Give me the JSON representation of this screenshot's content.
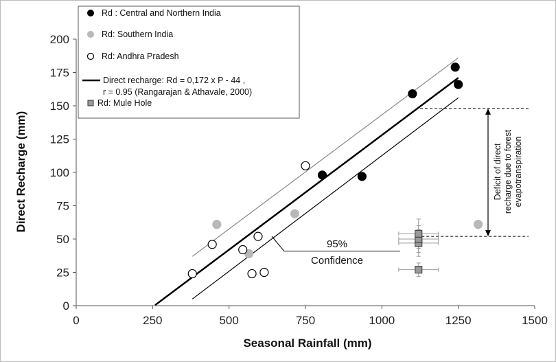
{
  "chart_data": {
    "type": "scatter",
    "xlabel": "Seasonal Rainfall (mm)",
    "ylabel": "Direct Recharge (mm)",
    "xlim": [
      0,
      1500
    ],
    "ylim": [
      0,
      200
    ],
    "x_ticks": [
      "0",
      "250",
      "500",
      "750",
      "1000",
      "1250",
      "1500"
    ],
    "y_ticks": [
      "0",
      "25",
      "50",
      "75",
      "100",
      "125",
      "150",
      "175",
      "200"
    ],
    "grid": false,
    "legend_position": "top-left",
    "legend": {
      "central": "Rd : Central and Northern India",
      "southern": "Rd: Southern India",
      "andhra": "Rd: Andhra Pradesh",
      "line_1": "Direct recharge: Rd = 0,172 x P - 44 ,",
      "line_2": "r = 0.95 (Rangarajan & Athavale, 2000)",
      "mule": "Rd: Mule Hole"
    },
    "series": [
      {
        "name": "Rd : Central and Northern India",
        "color": "#000000",
        "points": [
          [
            805,
            98
          ],
          [
            935,
            97
          ],
          [
            1100,
            159
          ],
          [
            1240,
            179
          ],
          [
            1250,
            166
          ]
        ]
      },
      {
        "name": "Rd: Southern India",
        "color": "#b8b8b8",
        "points": [
          [
            460,
            61
          ],
          [
            565,
            39
          ],
          [
            715,
            69
          ],
          [
            1315,
            61
          ]
        ]
      },
      {
        "name": "Rd: Andhra Pradesh",
        "color": "#ffffff",
        "points": [
          [
            380,
            24
          ],
          [
            445,
            46
          ],
          [
            545,
            42
          ],
          [
            575,
            24
          ],
          [
            595,
            52
          ],
          [
            615,
            25
          ],
          [
            750,
            105
          ]
        ]
      },
      {
        "name": "Rd: Mule Hole",
        "color": "#999999",
        "points": [
          [
            1120,
            27
          ],
          [
            1120,
            47
          ],
          [
            1120,
            50
          ],
          [
            1120,
            54
          ]
        ],
        "x_error": 65,
        "y_error": [
          5,
          10,
          10,
          11
        ]
      }
    ],
    "regression": {
      "slope": 0.172,
      "intercept": -44,
      "x_range": [
        258,
        1250
      ]
    },
    "confidence_upper": {
      "start": [
        380,
        37
      ],
      "end": [
        1250,
        186
      ]
    },
    "confidence_lower": {
      "start": [
        380,
        5
      ],
      "end": [
        1250,
        156
      ]
    },
    "annotation": {
      "confidence_line_1": "95%",
      "confidence_line_2": "Confidence",
      "deficit_line_1": "Deficit of direct",
      "deficit_line_2": "recharge due to forest",
      "deficit_line_3": "evapotranspiration",
      "deficit_top": 148,
      "deficit_bottom": 52
    }
  }
}
